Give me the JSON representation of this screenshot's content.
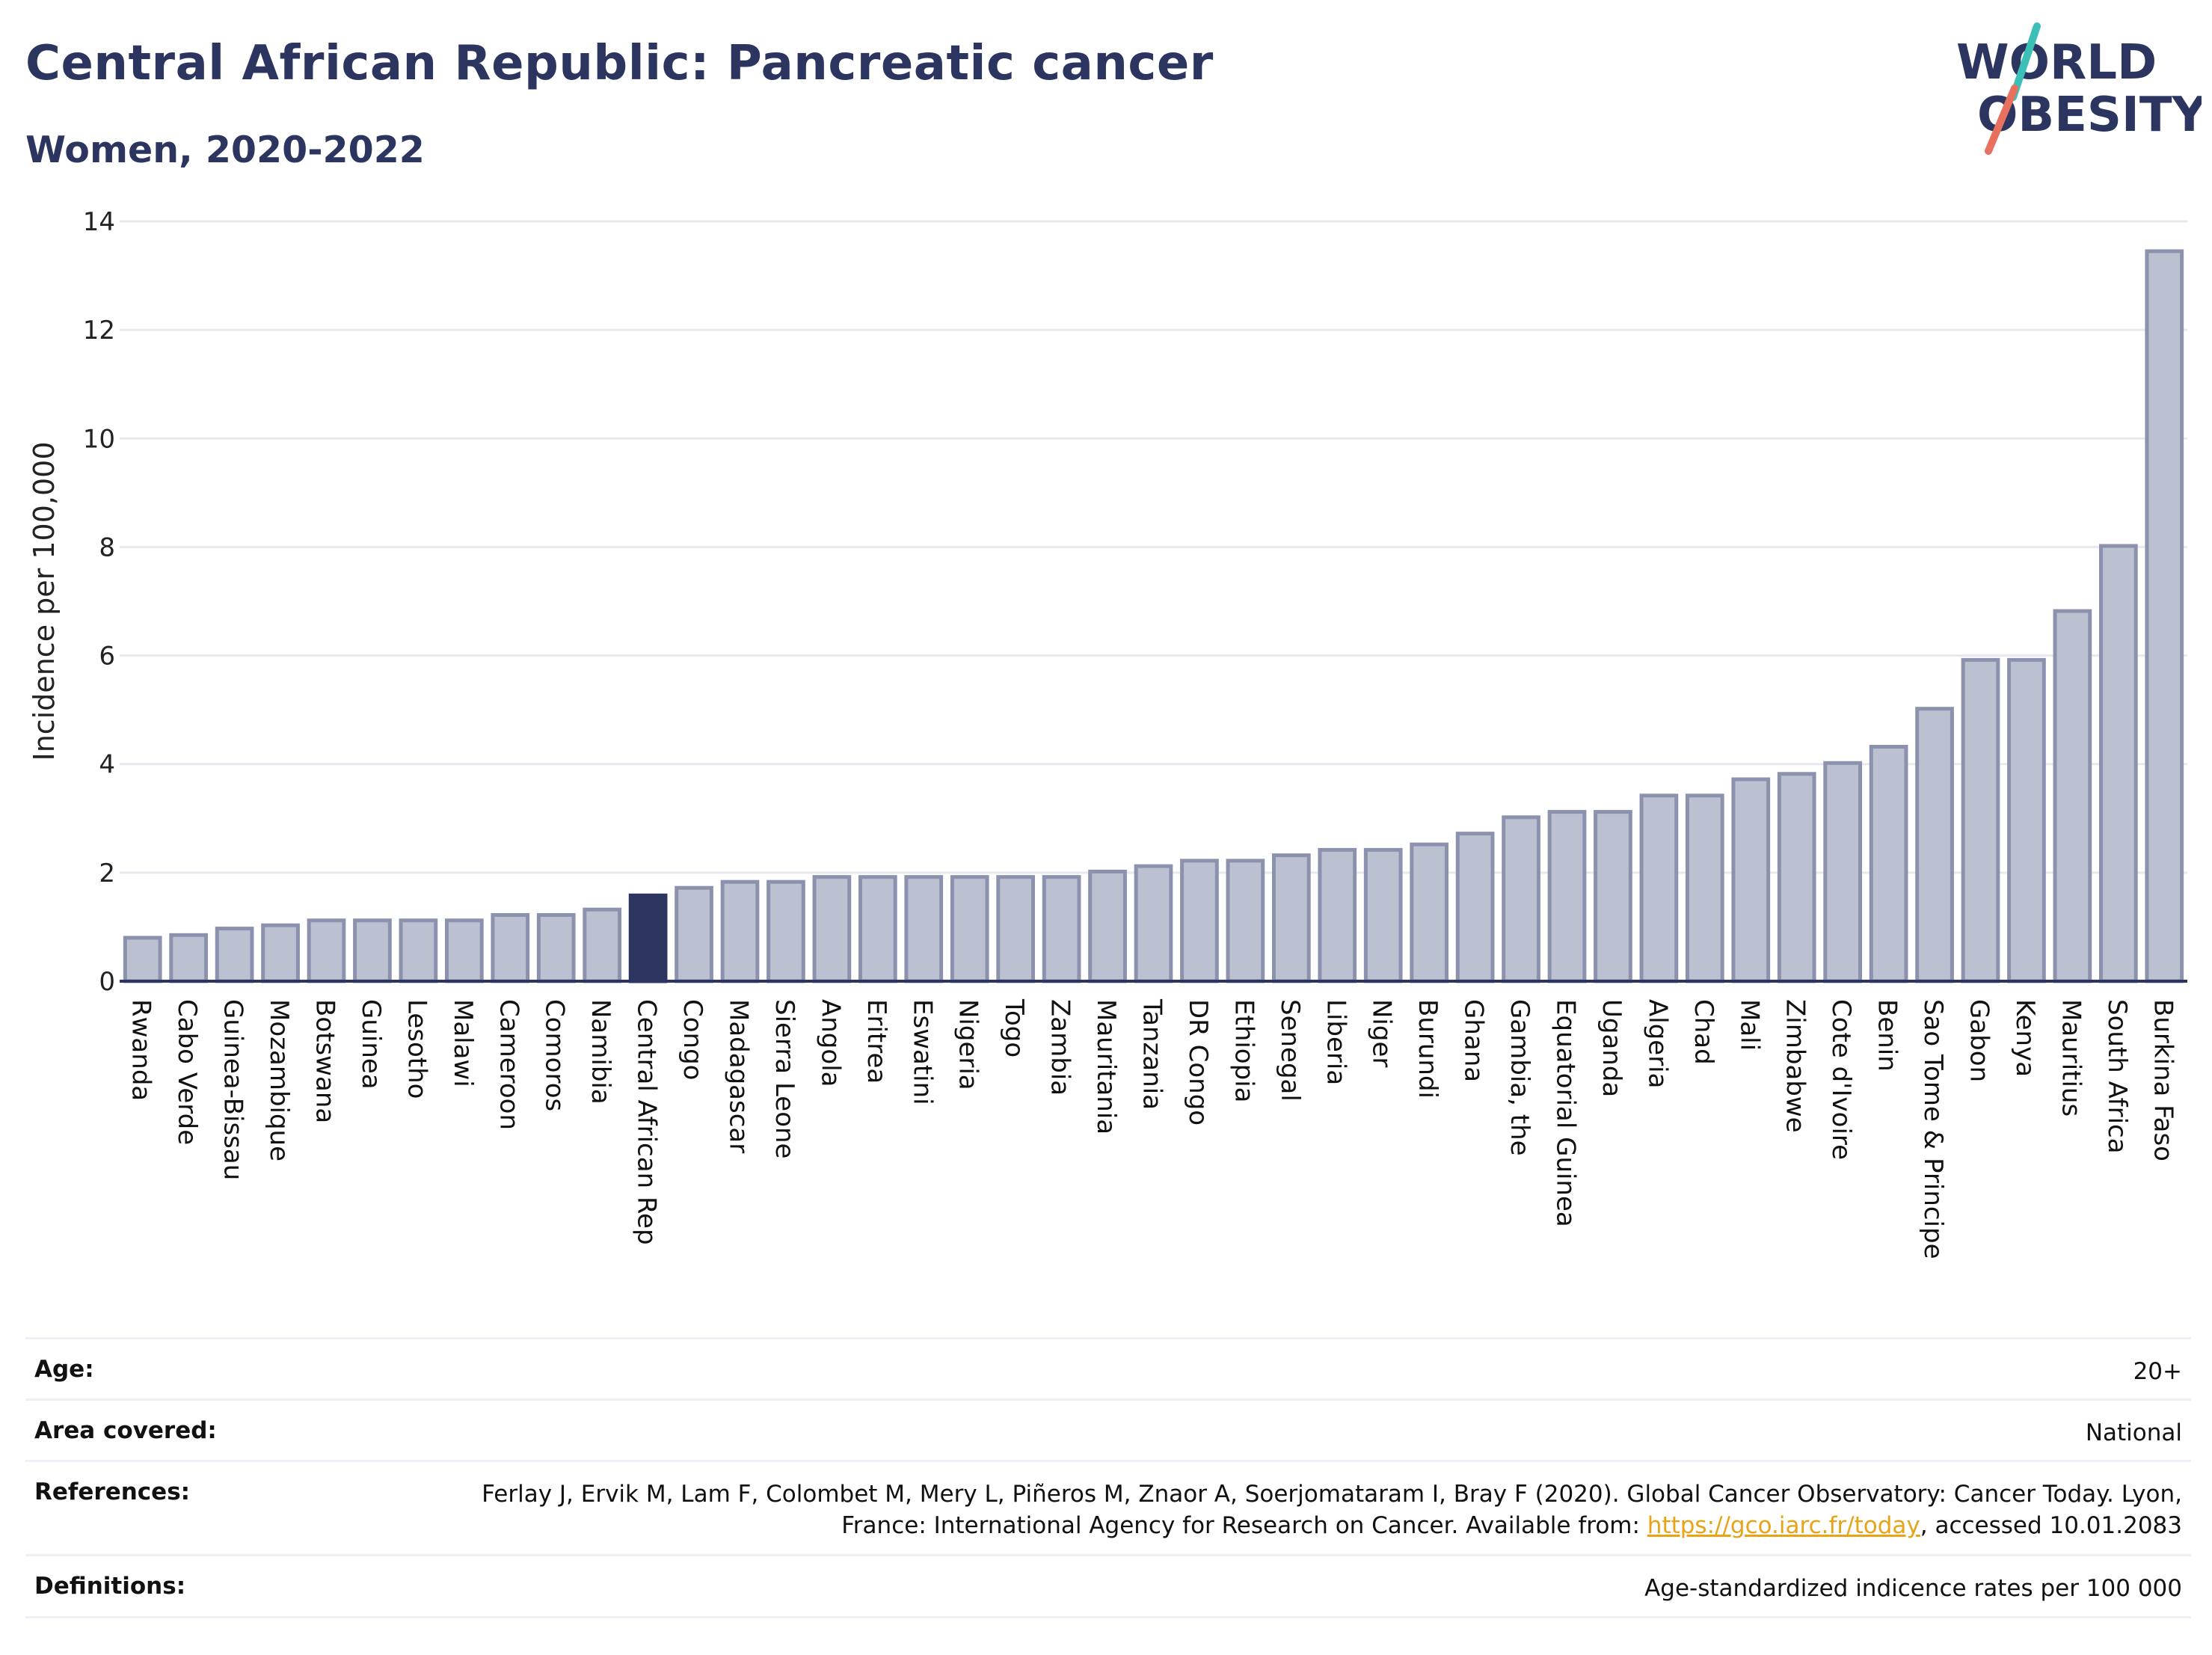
{
  "header": {
    "title": "Central African Republic: Pancreatic cancer",
    "subtitle": "Women, 2020-2022"
  },
  "logo": {
    "line1": "WORLD",
    "line2": "OBESITY",
    "colors": {
      "text": "#2b3560",
      "teal": "#3bbfb6",
      "coral": "#e8705f"
    }
  },
  "chart_data": {
    "type": "bar",
    "title": "",
    "xlabel": "",
    "ylabel": "Incidence per 100,000",
    "ylim": [
      0,
      14
    ],
    "yticks": [
      0,
      2,
      4,
      6,
      8,
      10,
      12,
      14
    ],
    "grid": true,
    "legend": "none",
    "highlight": "Central African Rep",
    "colors": {
      "bar": "#bcc1d2",
      "bar_edge": "#8c92ad",
      "highlight": "#2b3560",
      "grid": "#e8e9ef",
      "axis": "#2b3560"
    },
    "categories": [
      "Rwanda",
      "Cabo Verde",
      "Guinea-Bissau",
      "Mozambique",
      "Botswana",
      "Guinea",
      "Lesotho",
      "Malawi",
      "Cameroon",
      "Comoros",
      "Namibia",
      "Central African Rep",
      "Congo",
      "Madagascar",
      "Sierra Leone",
      "Angola",
      "Eritrea",
      "Eswatini",
      "Nigeria",
      "Togo",
      "Zambia",
      "Mauritania",
      "Tanzania",
      "DR Congo",
      "Ethiopia",
      "Senegal",
      "Liberia",
      "Niger",
      "Burundi",
      "Ghana",
      "Gambia, the",
      "Equatorial Guinea",
      "Uganda",
      "Algeria",
      "Chad",
      "Mali",
      "Zimbabwe",
      "Cote d'Ivoire",
      "Benin",
      "Sao Tome & Principe",
      "Gabon",
      "Kenya",
      "Mauritius",
      "South Africa",
      "Burkina Faso"
    ],
    "values": [
      0.8,
      0.85,
      0.97,
      1.03,
      1.12,
      1.12,
      1.12,
      1.12,
      1.22,
      1.22,
      1.32,
      1.58,
      1.72,
      1.83,
      1.83,
      1.92,
      1.92,
      1.92,
      1.92,
      1.92,
      1.92,
      2.02,
      2.12,
      2.22,
      2.22,
      2.32,
      2.42,
      2.42,
      2.52,
      2.72,
      3.02,
      3.12,
      3.12,
      3.42,
      3.42,
      3.72,
      3.82,
      4.02,
      4.32,
      5.02,
      5.92,
      5.92,
      6.82,
      8.02,
      13.45
    ]
  },
  "meta": {
    "age": {
      "label": "Age:",
      "value": "20+"
    },
    "area": {
      "label": "Area covered:",
      "value": "National"
    },
    "references": {
      "label": "References:",
      "text_before": "Ferlay J, Ervik M, Lam F, Colombet M, Mery L, Piñeros M, Znaor A, Soerjomataram I, Bray F (2020). Global Cancer Observatory: Cancer Today. Lyon, France: International Agency for Research on Cancer. Available from: ",
      "link": "https://gco.iarc.fr/today",
      "text_after": ", accessed 10.01.2083"
    },
    "definitions": {
      "label": "Definitions:",
      "value": "Age-standardized indicence rates per 100 000"
    }
  }
}
